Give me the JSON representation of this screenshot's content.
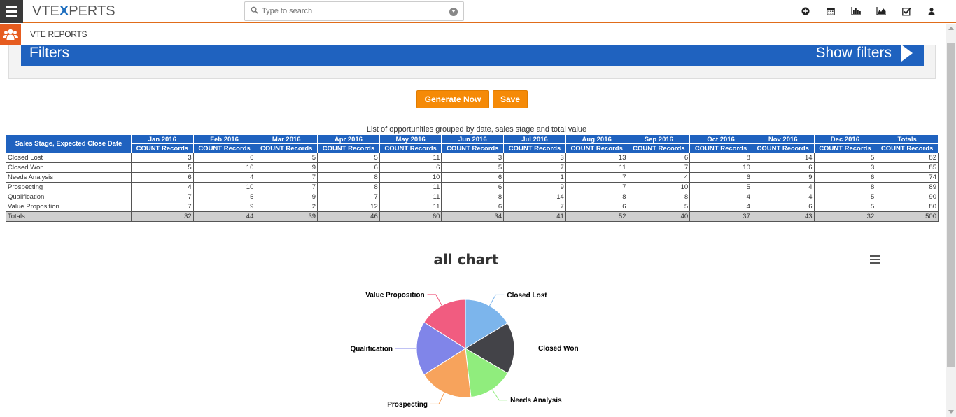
{
  "header": {
    "logo_prefix": "VTE",
    "logo_x": "X",
    "logo_suffix": "PERTS",
    "search_placeholder": "Type to search",
    "icons": [
      "plus-circle-icon",
      "calendar-icon",
      "bar-chart-icon",
      "area-chart-icon",
      "checkbox-icon",
      "user-icon"
    ]
  },
  "module": {
    "title": "VTE REPORTS"
  },
  "filters": {
    "title": "Filters",
    "show_label": "Show filters"
  },
  "buttons": {
    "generate": "Generate Now",
    "save": "Save"
  },
  "table": {
    "caption": "List of opportunities grouped by date, sales stage and total value",
    "row_header": "Sales Stage, Expected Close Date",
    "columns": [
      "Jan 2016",
      "Feb 2016",
      "Mar 2016",
      "Apr 2016",
      "May 2016",
      "Jun 2016",
      "Jul 2016",
      "Aug 2016",
      "Sep 2016",
      "Oct 2016",
      "Nov 2016",
      "Dec 2016",
      "Totals"
    ],
    "subheader": "COUNT Records",
    "rows": [
      {
        "label": "Closed Lost",
        "values": [
          "3",
          "6",
          "5",
          "5",
          "11",
          "3",
          "3",
          "13",
          "6",
          "8",
          "14",
          "5",
          "82"
        ]
      },
      {
        "label": "Closed Won",
        "values": [
          "5",
          "10",
          "9",
          "6",
          "6",
          "5",
          "7",
          "11",
          "7",
          "10",
          "6",
          "3",
          "85"
        ]
      },
      {
        "label": "Needs Analysis",
        "values": [
          "6",
          "4",
          "7",
          "8",
          "10",
          "6",
          "1",
          "7",
          "4",
          "6",
          "9",
          "6",
          "74"
        ]
      },
      {
        "label": "Prospecting",
        "values": [
          "4",
          "10",
          "7",
          "8",
          "11",
          "6",
          "9",
          "7",
          "10",
          "5",
          "4",
          "8",
          "89"
        ]
      },
      {
        "label": "Qualification",
        "values": [
          "7",
          "5",
          "9",
          "7",
          "11",
          "8",
          "14",
          "8",
          "8",
          "4",
          "4",
          "5",
          "90"
        ]
      },
      {
        "label": "Value Proposition",
        "values": [
          "7",
          "9",
          "2",
          "12",
          "11",
          "6",
          "7",
          "6",
          "5",
          "4",
          "6",
          "5",
          "80"
        ]
      }
    ],
    "totals": {
      "label": "Totals",
      "values": [
        "32",
        "44",
        "39",
        "46",
        "60",
        "34",
        "41",
        "52",
        "40",
        "37",
        "43",
        "32",
        "500"
      ]
    }
  },
  "chart_data": {
    "type": "pie",
    "title": "all chart",
    "categories": [
      "Closed Lost",
      "Closed Won",
      "Needs Analysis",
      "Prospecting",
      "Qualification",
      "Value Proposition"
    ],
    "values": [
      82,
      85,
      74,
      89,
      90,
      80
    ],
    "colors": [
      "#7cb5ec",
      "#434348",
      "#90ed7d",
      "#f7a35c",
      "#8085e9",
      "#f15c80"
    ]
  }
}
